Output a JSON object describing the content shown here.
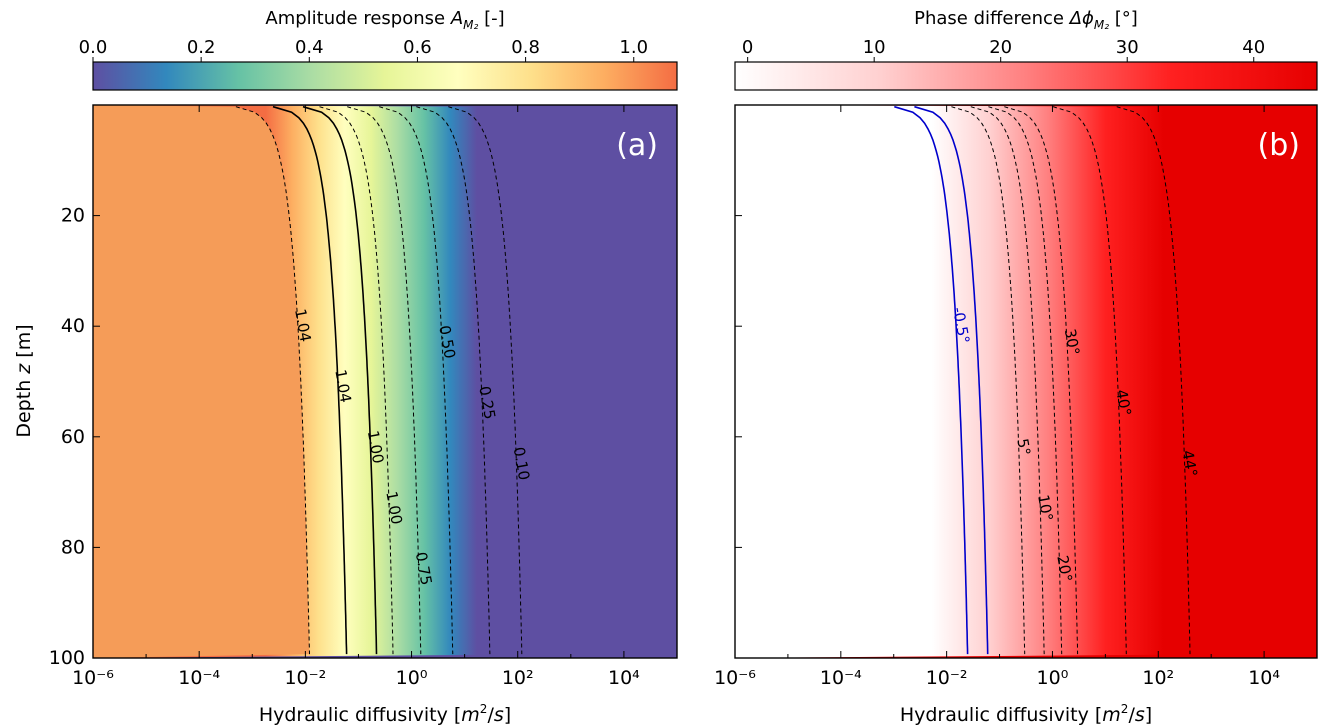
{
  "chart_data": [
    {
      "type": "heatmap",
      "panel_label": "(a)",
      "colorbar": {
        "label": "Amplitude response A_M2 [-]",
        "label_main": "Amplitude response ",
        "label_var": "A",
        "label_sub": "M₂",
        "label_unit": " [-]",
        "range": [
          0.0,
          1.08
        ],
        "ticks": [
          0.0,
          0.2,
          0.4,
          0.6,
          0.8,
          1.0
        ],
        "tick_labels": [
          "0.0",
          "0.2",
          "0.4",
          "0.6",
          "0.8",
          "1.0"
        ],
        "colormap": "Spectral_r",
        "colors": [
          "#5e4fa2",
          "#3288bd",
          "#66c2a5",
          "#abdda4",
          "#e6f598",
          "#ffffbf",
          "#fee08b",
          "#fdae61",
          "#f46d43"
        ]
      },
      "xlabel": "Hydraulic diffusivity [m²/s]",
      "xscale": "log",
      "xlim": [
        1e-06,
        100000.0
      ],
      "xticks": [
        "10⁻⁶",
        "10⁻⁴",
        "10⁻²",
        "10⁰",
        "10²",
        "10⁴"
      ],
      "ylabel": "Depth z [m]",
      "ylim": [
        100,
        0
      ],
      "yticks": [
        "20",
        "40",
        "60",
        "80",
        "100"
      ],
      "background_value_low_diffusivity": 1.0,
      "background_value_high_diffusivity": 0.0,
      "contours": [
        {
          "level": 1.04,
          "label": "1.04",
          "style": "dashed",
          "color": "#000000",
          "x_at_100m": 0.012
        },
        {
          "level": 1.04,
          "label": "1.04",
          "style": "solid",
          "color": "#000000",
          "x_at_100m": 0.06
        },
        {
          "level": 1.0,
          "label": "1.00",
          "style": "solid",
          "color": "#000000",
          "x_at_100m": 0.22
        },
        {
          "level": 1.0,
          "label": "1.00",
          "style": "dashed",
          "color": "#000000",
          "x_at_100m": 0.45
        },
        {
          "level": 0.75,
          "label": "0.75",
          "style": "dashed",
          "color": "#000000",
          "x_at_100m": 1.5
        },
        {
          "level": 0.5,
          "label": "0.50",
          "style": "dashed",
          "color": "#000000",
          "x_at_100m": 6
        },
        {
          "level": 0.25,
          "label": "0.25",
          "style": "dashed",
          "color": "#000000",
          "x_at_100m": 30
        },
        {
          "level": 0.1,
          "label": "0.10",
          "style": "dashed",
          "color": "#000000",
          "x_at_100m": 120
        }
      ]
    },
    {
      "type": "heatmap",
      "panel_label": "(b)",
      "colorbar": {
        "label": "Phase difference Δϕ_M2 [°]",
        "label_main": "Phase difference ",
        "label_var": "Δϕ",
        "label_sub": "M₂",
        "label_unit": " [°]",
        "range": [
          -1,
          45
        ],
        "ticks": [
          0,
          10,
          20,
          30,
          40
        ],
        "tick_labels": [
          "0",
          "10",
          "20",
          "30",
          "40"
        ],
        "colormap": "white-red",
        "colors": [
          "#ffffff",
          "#ffd0d0",
          "#ff8080",
          "#ff2020",
          "#e60000"
        ]
      },
      "xlabel": "Hydraulic diffusivity [m²/s]",
      "xscale": "log",
      "xlim": [
        1e-06,
        100000.0
      ],
      "xticks": [
        "10⁻⁶",
        "10⁻⁴",
        "10⁻²",
        "10⁰",
        "10²",
        "10⁴"
      ],
      "ylim": [
        100,
        0
      ],
      "background_value_low_diffusivity": 0,
      "background_value_high_diffusivity": 45,
      "contours": [
        {
          "level": -0.5,
          "label": "-0.5°",
          "style": "solid",
          "color": "#0000cc",
          "x_at_100m": 0.025
        },
        {
          "level": -0.5,
          "label": "",
          "style": "solid",
          "color": "#0000cc",
          "x_at_100m": 0.06
        },
        {
          "level": 5,
          "label": "5°",
          "style": "dashed",
          "color": "#000000",
          "x_at_100m": 0.3
        },
        {
          "level": 10,
          "label": "10°",
          "style": "dashed",
          "color": "#000000",
          "x_at_100m": 0.7
        },
        {
          "level": 20,
          "label": "20°",
          "style": "dashed",
          "color": "#000000",
          "x_at_100m": 1.5
        },
        {
          "level": 30,
          "label": "30°",
          "style": "dashed",
          "color": "#000000",
          "x_at_100m": 3
        },
        {
          "level": 40,
          "label": "40°",
          "style": "dashed",
          "color": "#000000",
          "x_at_100m": 25
        },
        {
          "level": 44,
          "label": "44°",
          "style": "dashed",
          "color": "#000000",
          "x_at_100m": 400
        }
      ]
    }
  ]
}
